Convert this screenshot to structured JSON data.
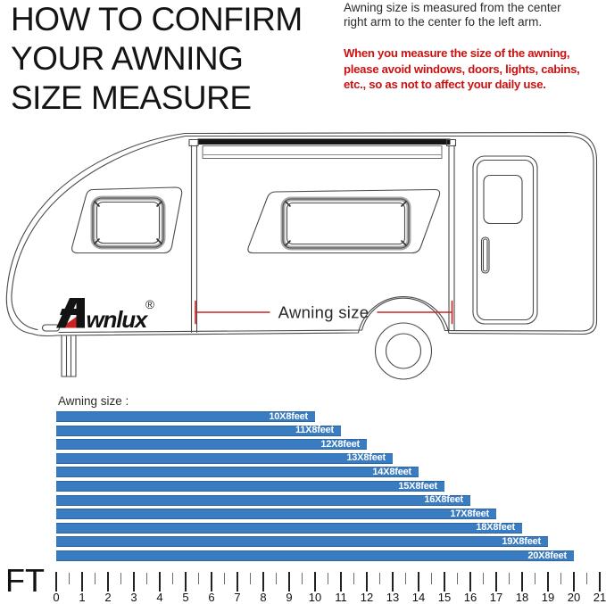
{
  "header": {
    "title": "HOW TO CONFIRM\nYOUR AWNING\nSIZE MEASURE"
  },
  "notes": {
    "measure": "Awning size is measured from the center\nright arm to the center fo the left arm.",
    "warning": "When you measure the size of the awning,\nplease avoid windows, doors, lights, cabins,\netc., so as not to affect your daily use.",
    "warning_color": "#cc1111"
  },
  "diagram": {
    "brand": "Awnlux",
    "brand_text": "wnlux",
    "reg_mark": "®",
    "measure_label": "Awning size",
    "accent_red": "#cc2222"
  },
  "chart_data": {
    "type": "bar",
    "orientation": "horizontal",
    "title": "Awning size :",
    "categories": [
      "10X8feet",
      "11X8feet",
      "12X8feet",
      "13X8feet",
      "14X8feet",
      "15X8feet",
      "16X8feet",
      "17X8feet",
      "18X8feet",
      "19X8feet",
      "20X8feet"
    ],
    "values": [
      10,
      11,
      12,
      13,
      14,
      15,
      16,
      17,
      18,
      19,
      20
    ],
    "unit_label": "FT",
    "axis": {
      "min": 0,
      "max": 21,
      "major_step": 1,
      "minor_step": 0.5
    },
    "legend": false,
    "grid": false,
    "bar_color": "#3a7cc1",
    "bar_label_color": "#ffffff"
  }
}
